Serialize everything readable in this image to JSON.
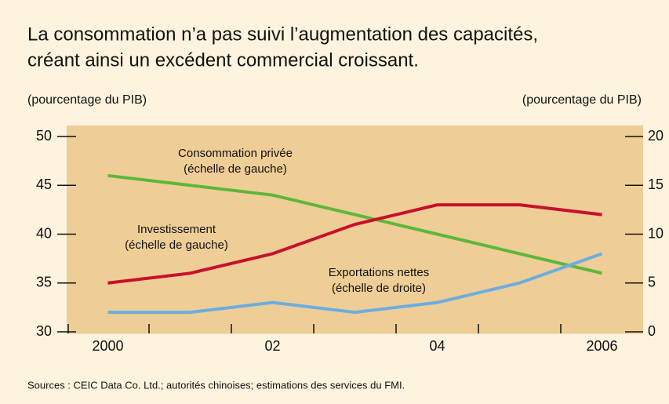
{
  "chart_data": {
    "type": "line",
    "title_lines": [
      "La consommation n’a pas suivi l’augmentation des capacités,",
      "créant ainsi un excédent commercial croissant."
    ],
    "ylabel": "(pourcentage du PIB)",
    "y2label": "(pourcentage du PIB)",
    "source": "Sources : CEIC Data Co. Ltd.; autorités chinoises; estimations des services du FMI.",
    "x": [
      2000,
      2001,
      2002,
      2003,
      2004,
      2005,
      2006
    ],
    "xlim": [
      1999.5,
      2006.5
    ],
    "xticks": [
      2000,
      {
        "value": 2002,
        "label": "02"
      },
      {
        "value": 2004,
        "label": "04"
      },
      2006
    ],
    "xminor": [
      2000.5,
      2001.5,
      2002.5,
      2003.5,
      2004.5,
      2005.5
    ],
    "ylim": [
      30,
      50
    ],
    "yticks": [
      30,
      35,
      40,
      45,
      50
    ],
    "y2lim": [
      0,
      20
    ],
    "y2ticks": [
      0,
      5,
      10,
      15,
      20
    ],
    "series": [
      {
        "name": "Consommation privée",
        "note": "(échelle de gauche)",
        "color": "#5cb83a",
        "values": [
          46,
          45,
          44,
          42,
          40,
          38,
          36
        ]
      },
      {
        "name": "Investissement",
        "note": "(échelle de gauche)",
        "color": "#c8102e",
        "values": [
          35,
          36,
          38,
          41,
          43,
          43,
          42
        ]
      },
      {
        "name": "Exportations nettes",
        "note": "(échelle de droite)",
        "color": "#6aaee0",
        "axis": "y2",
        "values": [
          2,
          2,
          3,
          2,
          3,
          5,
          8
        ]
      }
    ]
  }
}
